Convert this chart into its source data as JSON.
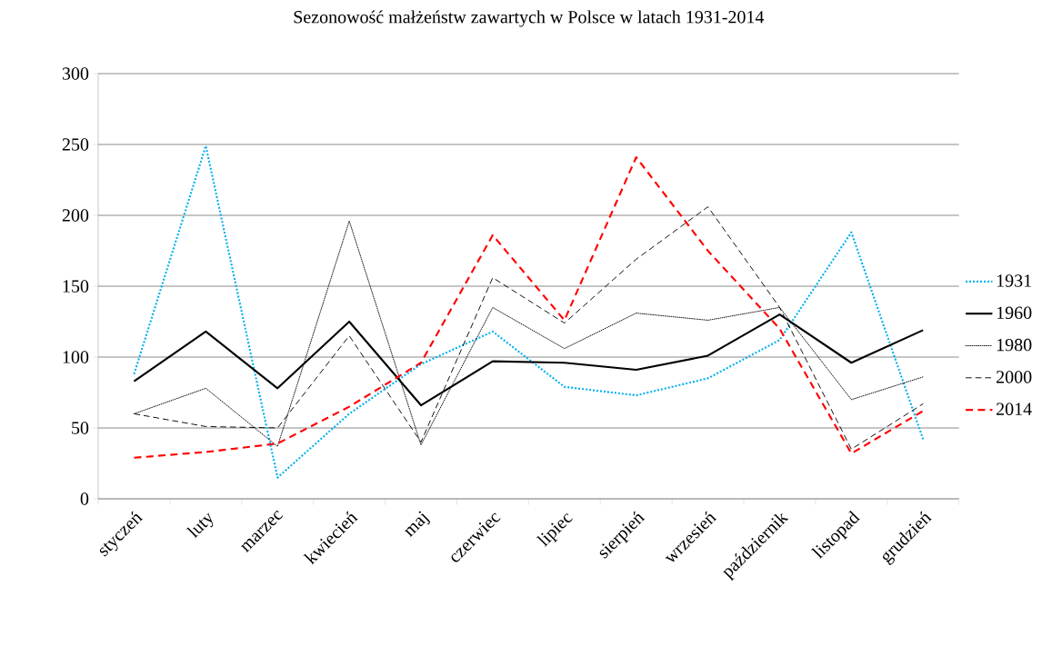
{
  "chart_data": {
    "type": "line",
    "title": "Sezonowość małżeństw zawartych w Polsce w latach 1931-2014",
    "categories": [
      "styczeń",
      "luty",
      "marzec",
      "kwiecień",
      "maj",
      "czerwiec",
      "lipiec",
      "sierpień",
      "wrzesień",
      "październik",
      "listopad",
      "grudzień"
    ],
    "series": [
      {
        "name": "1931",
        "color": "#00b0f0",
        "line_style": "dotted",
        "values": [
          88,
          249,
          15,
          60,
          95,
          118,
          79,
          73,
          85,
          112,
          188,
          42
        ]
      },
      {
        "name": "1960",
        "color": "#000000",
        "line_style": "solid",
        "values": [
          83,
          118,
          78,
          125,
          66,
          97,
          96,
          91,
          101,
          130,
          96,
          119
        ]
      },
      {
        "name": "1980",
        "color": "#000000",
        "line_style": "dotted",
        "values": [
          60,
          78,
          37,
          196,
          38,
          135,
          106,
          131,
          126,
          135,
          70,
          86
        ]
      },
      {
        "name": "2000",
        "color": "#000000",
        "line_style": "dashed",
        "values": [
          60,
          51,
          50,
          115,
          40,
          156,
          124,
          169,
          206,
          135,
          35,
          67
        ]
      },
      {
        "name": "2014",
        "color": "#ff0000",
        "line_style": "dashed",
        "values": [
          29,
          33,
          39,
          65,
          96,
          186,
          126,
          241,
          175,
          120,
          32,
          62
        ]
      }
    ],
    "ylim": [
      0,
      300
    ],
    "yticks": [
      0,
      50,
      100,
      150,
      200,
      250,
      300
    ],
    "grid": "y",
    "legend": "right",
    "marker": "none"
  }
}
